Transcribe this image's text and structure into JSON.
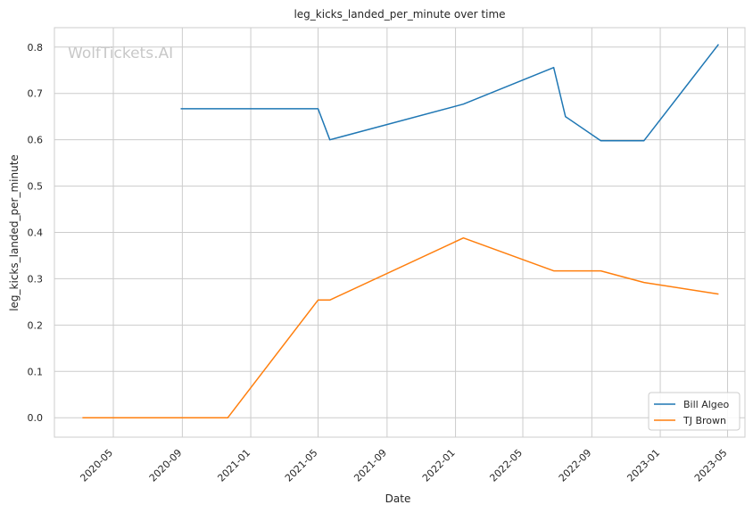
{
  "chart_data": {
    "type": "line",
    "title": "leg_kicks_landed_per_minute over time",
    "xlabel": "Date",
    "ylabel": "leg_kicks_landed_per_minute",
    "watermark": "WolfTickets.AI",
    "xlim": [
      "2020-01-17",
      "2023-06-01"
    ],
    "ylim": [
      -0.042,
      0.842
    ],
    "x_ticks": [
      "2020-05",
      "2020-09",
      "2021-01",
      "2021-05",
      "2021-09",
      "2022-01",
      "2022-05",
      "2022-09",
      "2023-01",
      "2023-05"
    ],
    "y_ticks": [
      "0.0",
      "0.1",
      "0.2",
      "0.3",
      "0.4",
      "0.5",
      "0.6",
      "0.7",
      "0.8"
    ],
    "grid": true,
    "legend": "lower-right",
    "series": [
      {
        "name": "Bill Algeo",
        "color": "#1f77b4",
        "points": [
          {
            "x": "2020-08-29",
            "y": 0.667
          },
          {
            "x": "2021-05-01",
            "y": 0.667
          },
          {
            "x": "2021-05-22",
            "y": 0.6
          },
          {
            "x": "2022-01-15",
            "y": 0.677
          },
          {
            "x": "2022-06-25",
            "y": 0.756
          },
          {
            "x": "2022-07-16",
            "y": 0.65
          },
          {
            "x": "2022-09-17",
            "y": 0.598
          },
          {
            "x": "2022-12-03",
            "y": 0.598
          },
          {
            "x": "2023-04-15",
            "y": 0.806
          }
        ]
      },
      {
        "name": "TJ Brown",
        "color": "#ff7f0e",
        "points": [
          {
            "x": "2020-03-07",
            "y": 0.0
          },
          {
            "x": "2020-11-21",
            "y": 0.0
          },
          {
            "x": "2021-05-01",
            "y": 0.254
          },
          {
            "x": "2021-05-22",
            "y": 0.254
          },
          {
            "x": "2022-01-15",
            "y": 0.388
          },
          {
            "x": "2022-06-25",
            "y": 0.317
          },
          {
            "x": "2022-09-17",
            "y": 0.317
          },
          {
            "x": "2022-12-03",
            "y": 0.292
          },
          {
            "x": "2023-04-15",
            "y": 0.267
          }
        ]
      }
    ]
  }
}
